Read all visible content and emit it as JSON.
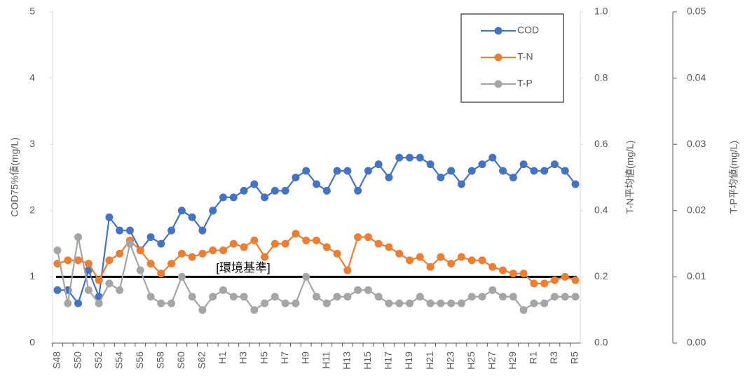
{
  "chart_data": {
    "type": "line",
    "categories": [
      "S48",
      null,
      "S50",
      null,
      "S52",
      null,
      "S54",
      null,
      "S56",
      null,
      "S58",
      null,
      "S60",
      null,
      "S62",
      null,
      "H1",
      null,
      "H3",
      null,
      "H5",
      null,
      "H7",
      null,
      "H9",
      null,
      "H11",
      null,
      "H13",
      null,
      "H15",
      null,
      "H17",
      null,
      "H19",
      null,
      "H21",
      null,
      "H23",
      null,
      "H25",
      null,
      "H27",
      null,
      "H29",
      null,
      "R1",
      null,
      "R3",
      null,
      "R5"
    ],
    "series": [
      {
        "name": "COD",
        "color": "#4472c4",
        "axis": "y",
        "values": [
          0.8,
          0.8,
          0.6,
          1.1,
          0.7,
          1.9,
          1.7,
          1.7,
          1.4,
          1.6,
          1.5,
          1.7,
          2.0,
          1.9,
          1.7,
          2.0,
          2.2,
          2.2,
          2.3,
          2.4,
          2.2,
          2.3,
          2.3,
          2.5,
          2.6,
          2.4,
          2.3,
          2.6,
          2.6,
          2.3,
          2.6,
          2.7,
          2.5,
          2.8,
          2.8,
          2.8,
          2.7,
          2.5,
          2.6,
          2.4,
          2.6,
          2.7,
          2.8,
          2.6,
          2.5,
          2.7,
          2.6,
          2.6,
          2.7,
          2.6,
          2.4
        ]
      },
      {
        "name": "T-N",
        "color": "#ed7d31",
        "axis": "y2",
        "values": [
          0.24,
          0.25,
          0.25,
          0.24,
          0.19,
          0.25,
          0.27,
          0.31,
          0.28,
          0.24,
          0.21,
          0.24,
          0.27,
          0.26,
          0.27,
          0.28,
          0.28,
          0.3,
          0.29,
          0.31,
          0.26,
          0.3,
          0.3,
          0.33,
          0.31,
          0.31,
          0.29,
          0.27,
          0.22,
          0.32,
          0.32,
          0.3,
          0.29,
          0.27,
          0.25,
          0.26,
          0.23,
          0.26,
          0.24,
          0.26,
          0.25,
          0.25,
          0.23,
          0.22,
          0.21,
          0.21,
          0.18,
          0.18,
          0.19,
          0.2,
          0.19
        ]
      },
      {
        "name": "T-P",
        "color": "#a5a5a5",
        "axis": "y3",
        "values": [
          0.014,
          0.006,
          0.016,
          0.008,
          0.006,
          0.009,
          0.008,
          0.015,
          0.011,
          0.007,
          0.006,
          0.006,
          0.01,
          0.007,
          0.005,
          0.007,
          0.008,
          0.007,
          0.007,
          0.005,
          0.006,
          0.007,
          0.006,
          0.006,
          0.01,
          0.007,
          0.006,
          0.007,
          0.007,
          0.008,
          0.008,
          0.007,
          0.006,
          0.006,
          0.006,
          0.007,
          0.006,
          0.006,
          0.006,
          0.006,
          0.007,
          0.007,
          0.008,
          0.007,
          0.007,
          0.005,
          0.006,
          0.006,
          0.007,
          0.007,
          0.007
        ]
      }
    ],
    "ylabel": "COD75%値(mg/L)",
    "y2label": "T-N平均値(mg/L)",
    "y3label": "T-P平均値(mg/L)",
    "ylim": [
      0,
      5
    ],
    "yticks": [
      0,
      1,
      2,
      3,
      4,
      5
    ],
    "y2lim": [
      0,
      1
    ],
    "y2ticks": [
      {
        "value": 0,
        "label": "0.0"
      },
      0.2,
      0.4,
      0.6,
      0.8,
      {
        "value": 1,
        "label": "1.0"
      }
    ],
    "y3lim": [
      0,
      0.05
    ],
    "y3ticks": [
      {
        "value": 0,
        "label": "0.00"
      },
      0.01,
      0.02,
      0.03,
      0.04,
      0.05
    ],
    "reference_line": {
      "value": 1,
      "label": "[環境基準]",
      "color": "#000000"
    },
    "legend": "top-right"
  }
}
